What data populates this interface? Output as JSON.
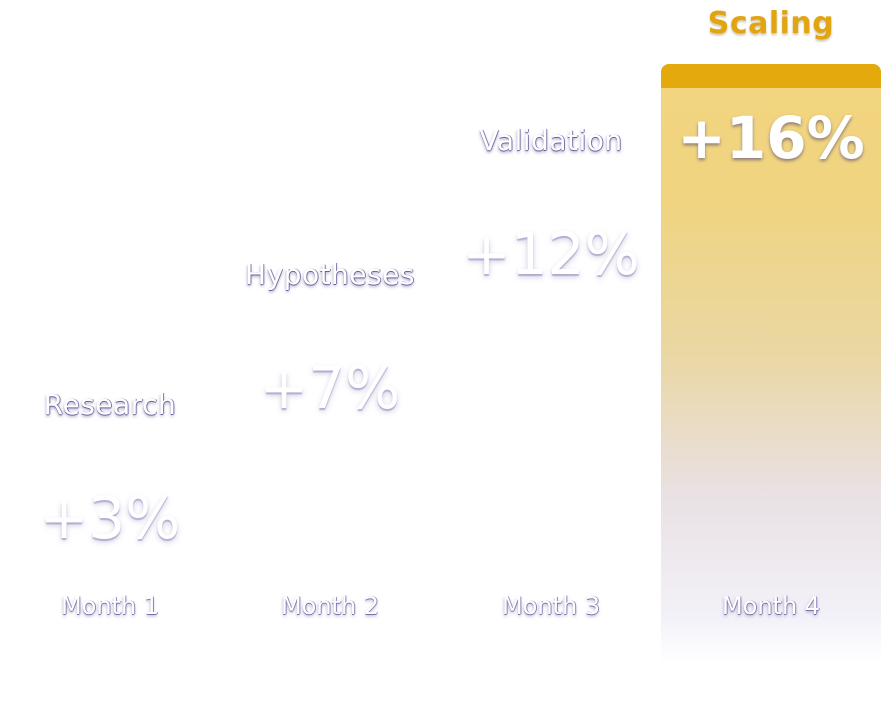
{
  "chart_data": {
    "type": "bar",
    "categories": [
      "Month 1",
      "Month 2",
      "Month 3",
      "Month 4"
    ],
    "stages": [
      "Research",
      "Hypotheses",
      "Validation",
      "Scaling"
    ],
    "values": [
      3,
      7,
      12,
      16
    ],
    "value_labels": [
      "+3%",
      "+7%",
      "+12%",
      "+16%"
    ],
    "highlight_index": 3,
    "ylim": [
      0,
      16
    ],
    "grid": false,
    "legend": "none",
    "colors": {
      "highlight_cap": "#e3a90d",
      "highlight_label": "#e1a512",
      "highlight_fill_top": "#f3d57f",
      "text": "#ffffff",
      "text_shadow": "#6a5fa0"
    }
  }
}
